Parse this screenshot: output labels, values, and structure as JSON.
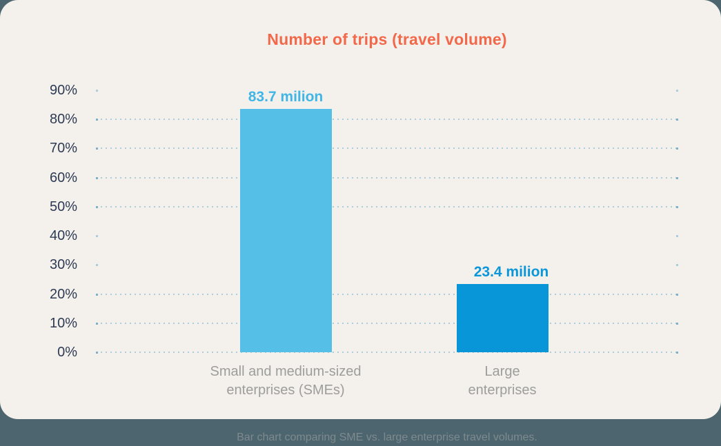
{
  "page": {
    "background_color": "#4C656E",
    "card_color": "#F4F1EC",
    "caption": "Bar chart comparing SME vs. large enterprise travel volumes."
  },
  "chart_data": {
    "type": "bar",
    "title": "Number of trips (travel volume)",
    "categories": [
      "Small and medium-sized enterprises (SMEs)",
      "Large enterprises"
    ],
    "category_lines": [
      [
        "Small and medium-sized",
        "enterprises (SMEs)"
      ],
      [
        "Large",
        "enterprises"
      ]
    ],
    "category_slugs": [
      "smes",
      "large-enterprises"
    ],
    "values": [
      83.7,
      23.4
    ],
    "value_labels": [
      "83.7 milion",
      "23.4 milion"
    ],
    "unit": "milion trips, plotted as percent",
    "axis": {
      "ylim": [
        0,
        90
      ],
      "yticks_percent": [
        90,
        80,
        70,
        60,
        50,
        40,
        30,
        20,
        10,
        0
      ],
      "ytick_labels": [
        "90%",
        "80%",
        "70%",
        "60%",
        "50%",
        "40%",
        "30%",
        "20%",
        "10%",
        "0%"
      ]
    },
    "grid": {
      "style": "dotted-horizontal",
      "full_lines_percent": [
        80,
        70,
        60,
        50,
        20,
        10,
        0
      ],
      "end_dots_only_percent": [
        90,
        40,
        30
      ]
    },
    "legend": "none",
    "colors": {
      "bars": [
        "#55BFE7",
        "#0996D9"
      ],
      "value_labels": [
        "#41B6E6",
        "#0A96D8"
      ],
      "title": "#F2684A",
      "ticks": "#2D3A53",
      "categories": "#9D9D9B",
      "gridline": "#ABCDDC",
      "gridline_end_dot": "#7FB0C9",
      "caption": "#7E8A8E"
    }
  }
}
